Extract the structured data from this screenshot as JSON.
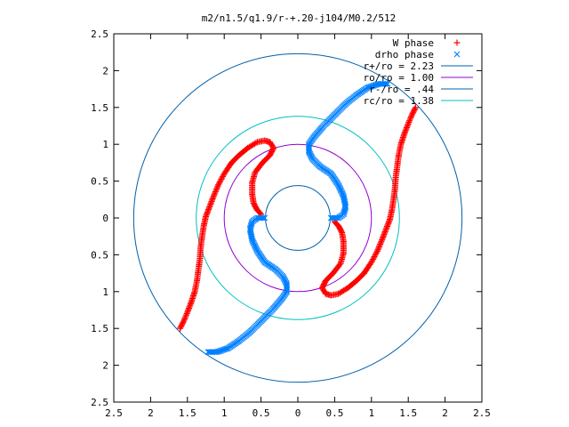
{
  "chart_data": {
    "type": "scatter",
    "title": "m2/n1.5/q1.9/r-+.20-j104/M0.2/512",
    "xlim": [
      -2.5,
      2.5
    ],
    "ylim": [
      -2.5,
      2.5
    ],
    "x_tick_values": [
      -2.5,
      -2,
      -1.5,
      -1,
      -0.5,
      0,
      0.5,
      1,
      1.5,
      2,
      2.5
    ],
    "x_tick_labels": [
      "2.5",
      "2",
      "1.5",
      "1",
      "0.5",
      "0",
      "0.5",
      "1",
      "1.5",
      "2",
      "2.5"
    ],
    "y_tick_values": [
      2.5,
      2,
      1.5,
      1,
      0.5,
      0,
      -0.5,
      -1,
      -1.5,
      -2,
      -2.5
    ],
    "y_tick_labels": [
      "2.5",
      "2",
      "1.5",
      "1",
      "0.5",
      "0",
      "0.5",
      "1",
      "1.5",
      "2",
      "2.5"
    ],
    "legend_position": "top-right",
    "grid": false,
    "series": [
      {
        "name": "W phase",
        "marker": "+",
        "color": "#ff0000",
        "arms": [
          [
            [
              1.6,
              1.5
            ],
            [
              1.55,
              1.4
            ],
            [
              1.5,
              1.28
            ],
            [
              1.45,
              1.15
            ],
            [
              1.4,
              1.0
            ],
            [
              1.37,
              0.85
            ],
            [
              1.35,
              0.7
            ],
            [
              1.33,
              0.55
            ],
            [
              1.32,
              0.4
            ],
            [
              1.3,
              0.25
            ],
            [
              1.28,
              0.12
            ],
            [
              1.25,
              -0.02
            ],
            [
              1.2,
              -0.15
            ],
            [
              1.15,
              -0.28
            ],
            [
              1.08,
              -0.45
            ],
            [
              1.0,
              -0.6
            ],
            [
              0.9,
              -0.75
            ],
            [
              0.8,
              -0.85
            ],
            [
              0.68,
              -0.95
            ],
            [
              0.55,
              -1.03
            ],
            [
              0.45,
              -1.05
            ],
            [
              0.38,
              -1.03
            ],
            [
              0.33,
              -0.95
            ],
            [
              0.38,
              -0.85
            ],
            [
              0.48,
              -0.75
            ],
            [
              0.58,
              -0.62
            ],
            [
              0.62,
              -0.48
            ],
            [
              0.62,
              -0.32
            ],
            [
              0.6,
              -0.2
            ],
            [
              0.56,
              -0.12
            ],
            [
              0.5,
              -0.05
            ]
          ],
          [
            [
              -1.6,
              -1.5
            ],
            [
              -1.55,
              -1.4
            ],
            [
              -1.5,
              -1.28
            ],
            [
              -1.45,
              -1.15
            ],
            [
              -1.4,
              -1.0
            ],
            [
              -1.37,
              -0.85
            ],
            [
              -1.35,
              -0.7
            ],
            [
              -1.33,
              -0.55
            ],
            [
              -1.32,
              -0.4
            ],
            [
              -1.3,
              -0.25
            ],
            [
              -1.28,
              -0.12
            ],
            [
              -1.25,
              0.02
            ],
            [
              -1.2,
              0.15
            ],
            [
              -1.15,
              0.28
            ],
            [
              -1.08,
              0.45
            ],
            [
              -1.0,
              0.6
            ],
            [
              -0.9,
              0.75
            ],
            [
              -0.8,
              0.85
            ],
            [
              -0.68,
              0.95
            ],
            [
              -0.55,
              1.03
            ],
            [
              -0.45,
              1.05
            ],
            [
              -0.38,
              1.03
            ],
            [
              -0.33,
              0.95
            ],
            [
              -0.38,
              0.85
            ],
            [
              -0.48,
              0.75
            ],
            [
              -0.58,
              0.62
            ],
            [
              -0.62,
              0.48
            ],
            [
              -0.62,
              0.32
            ],
            [
              -0.6,
              0.2
            ],
            [
              -0.56,
              0.12
            ],
            [
              -0.5,
              0.05
            ]
          ]
        ]
      },
      {
        "name": "drho phase",
        "marker": "x",
        "color": "#0080ff",
        "arms": [
          [
            [
              0.45,
              0.0
            ],
            [
              0.55,
              0.0
            ],
            [
              0.62,
              0.05
            ],
            [
              0.65,
              0.15
            ],
            [
              0.62,
              0.3
            ],
            [
              0.55,
              0.45
            ],
            [
              0.45,
              0.6
            ],
            [
              0.3,
              0.7
            ],
            [
              0.2,
              0.8
            ],
            [
              0.15,
              0.9
            ],
            [
              0.15,
              1.0
            ],
            [
              0.22,
              1.1
            ],
            [
              0.35,
              1.25
            ],
            [
              0.5,
              1.4
            ],
            [
              0.65,
              1.55
            ],
            [
              0.8,
              1.67
            ],
            [
              0.95,
              1.77
            ],
            [
              1.1,
              1.82
            ],
            [
              1.22,
              1.82
            ]
          ],
          [
            [
              -0.45,
              0.0
            ],
            [
              -0.55,
              0.0
            ],
            [
              -0.62,
              -0.05
            ],
            [
              -0.65,
              -0.15
            ],
            [
              -0.62,
              -0.3
            ],
            [
              -0.55,
              -0.45
            ],
            [
              -0.45,
              -0.6
            ],
            [
              -0.3,
              -0.7
            ],
            [
              -0.2,
              -0.8
            ],
            [
              -0.15,
              -0.9
            ],
            [
              -0.15,
              -1.0
            ],
            [
              -0.22,
              -1.1
            ],
            [
              -0.35,
              -1.25
            ],
            [
              -0.5,
              -1.4
            ],
            [
              -0.65,
              -1.55
            ],
            [
              -0.8,
              -1.67
            ],
            [
              -0.95,
              -1.77
            ],
            [
              -1.1,
              -1.82
            ],
            [
              -1.22,
              -1.82
            ]
          ]
        ]
      }
    ],
    "circles": [
      {
        "name": "r+/ro = 2.23",
        "radius": 2.23,
        "color": "#0060ad"
      },
      {
        "name": "ro/ro = 1.00",
        "radius": 1.0,
        "color": "#9400d3"
      },
      {
        "name": "r-/ro = .44",
        "radius": 0.44,
        "color": "#0060ad"
      },
      {
        "name": "rc/ro = 1.38",
        "radius": 1.38,
        "color": "#00c0c0"
      }
    ]
  }
}
